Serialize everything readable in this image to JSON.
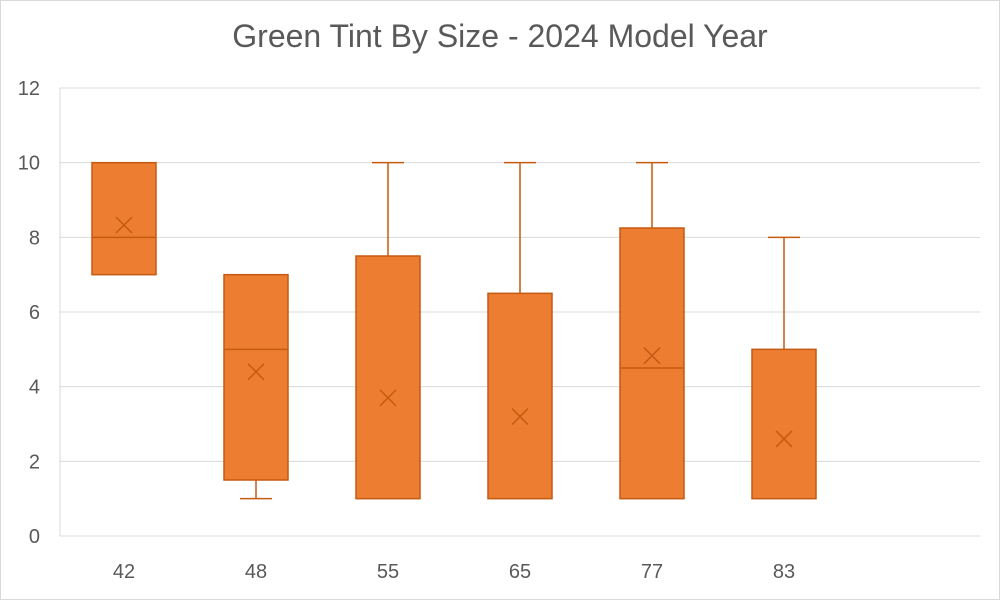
{
  "chart_data": {
    "type": "box",
    "title": "Green Tint By Size - 2024 Model Year",
    "xlabel": "",
    "ylabel": "",
    "ylim": [
      0,
      12
    ],
    "y_ticks": [
      "0",
      "2",
      "4",
      "6",
      "8",
      "10",
      "12"
    ],
    "grid": true,
    "legend": "none",
    "categories": [
      "42",
      "48",
      "55",
      "65",
      "77",
      "83"
    ],
    "boxes": [
      {
        "category": "42",
        "min": 7,
        "q1": 7,
        "median": 8,
        "q3": 10,
        "max": 10,
        "mean": 8.33
      },
      {
        "category": "48",
        "min": 1,
        "q1": 1.5,
        "median": 5,
        "q3": 7,
        "max": 7,
        "mean": 4.4
      },
      {
        "category": "55",
        "min": 1,
        "q1": 1,
        "median": 1,
        "q3": 7.5,
        "max": 10,
        "mean": 3.7
      },
      {
        "category": "65",
        "min": 1,
        "q1": 1,
        "median": 1,
        "q3": 6.5,
        "max": 10,
        "mean": 3.2
      },
      {
        "category": "77",
        "min": 1,
        "q1": 1,
        "median": 4.5,
        "q3": 8.25,
        "max": 10,
        "mean": 4.83
      },
      {
        "category": "83",
        "min": 1,
        "q1": 1,
        "median": 1,
        "q3": 5,
        "max": 8,
        "mean": 2.6
      }
    ],
    "colors": {
      "box_fill": "#ED7D31",
      "box_stroke": "#C55A11",
      "grid": "#d9d9d9",
      "text": "#595959"
    }
  }
}
